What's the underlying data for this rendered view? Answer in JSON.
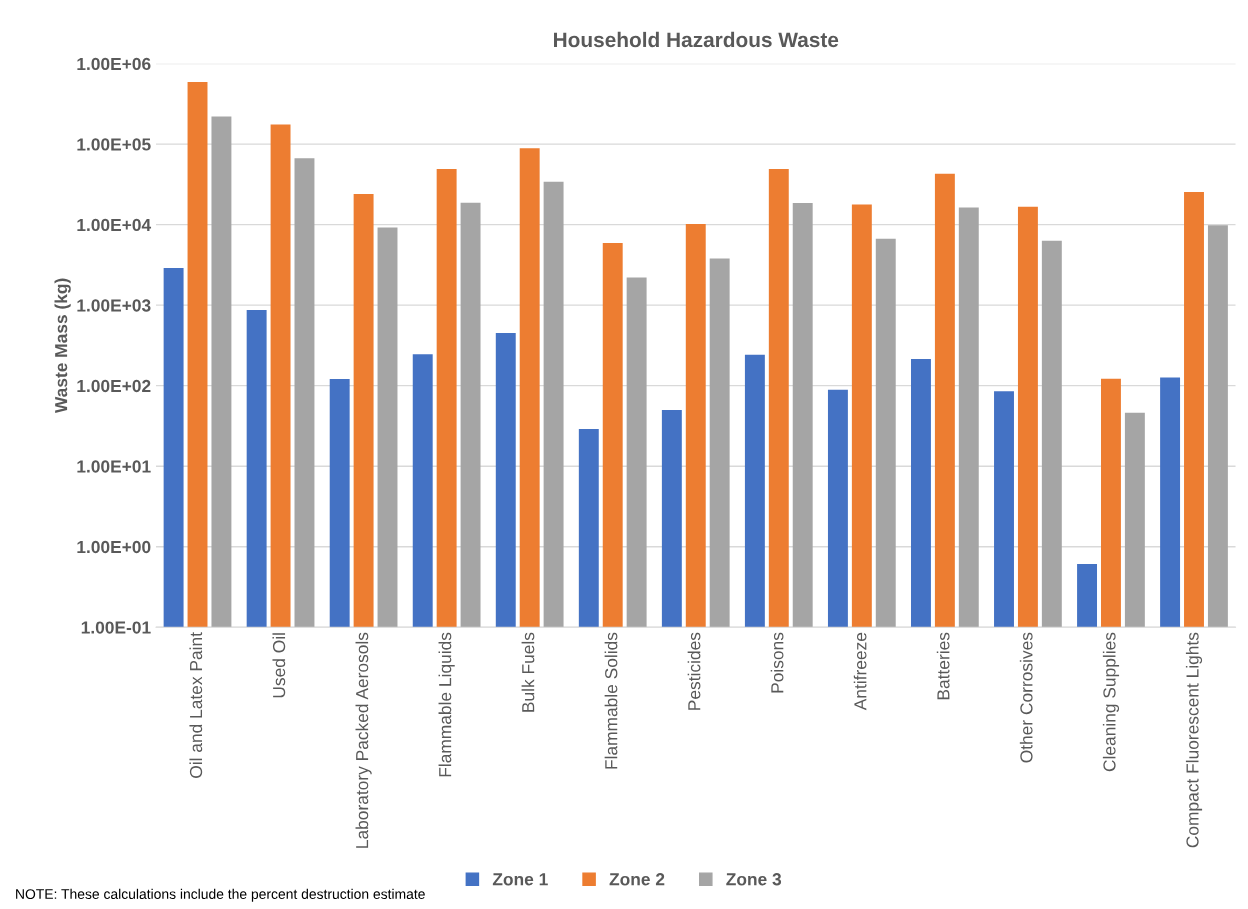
{
  "chart_data": {
    "type": "bar",
    "title": "Household Hazardous Waste",
    "ylabel": "Waste Mass (kg)",
    "categories": [
      "Oil and Latex Paint",
      "Used Oil",
      "Laboratory Packed Aerosols",
      "Flammable Liquids",
      "Bulk Fuels",
      "Flammable Solids",
      "Pesticides",
      "Poisons",
      "Antifreeze",
      "Batteries",
      "Other Corrosives",
      "Cleaning Supplies",
      "Compact Fluorescent Lights"
    ],
    "series": [
      {
        "name": "Zone 1",
        "color": "#4472c4",
        "values": [
          2900,
          870,
          121,
          245,
          450,
          29,
          50,
          243,
          89,
          215,
          85,
          0.61,
          126
        ]
      },
      {
        "name": "Zone 2",
        "color": "#ed7d31",
        "values": [
          590000,
          175000,
          24000,
          49000,
          89000,
          5900,
          10200,
          49000,
          17800,
          43000,
          16700,
          122,
          25500
        ]
      },
      {
        "name": "Zone 3",
        "color": "#a5a5a5",
        "values": [
          220000,
          67000,
          9200,
          18700,
          34000,
          2200,
          3800,
          18600,
          6700,
          16300,
          6300,
          46,
          9800
        ]
      }
    ],
    "log": "y",
    "ylim": [
      0.1,
      1000000
    ],
    "yticks": [
      {
        "value": 0.1,
        "label": "1.00E-01"
      },
      {
        "value": 1,
        "label": "1.00E+00"
      },
      {
        "value": 10,
        "label": "1.00E+01"
      },
      {
        "value": 100,
        "label": "1.00E+02"
      },
      {
        "value": 1000,
        "label": "1.00E+03"
      },
      {
        "value": 10000,
        "label": "1.00E+04"
      },
      {
        "value": 100000,
        "label": "1.00E+05"
      },
      {
        "value": 1000000,
        "label": "1.00E+06"
      }
    ],
    "grid": "y",
    "legend": "bottom",
    "annotations": [
      "NOTE: These calculations include the percent destruction estimate"
    ]
  }
}
